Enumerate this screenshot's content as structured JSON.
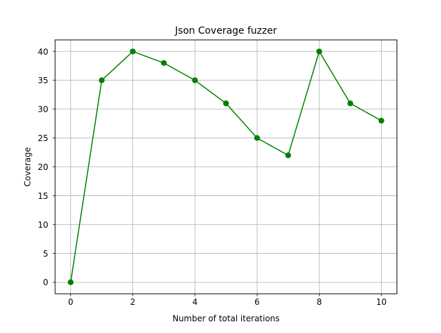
{
  "chart_data": {
    "type": "line",
    "title": "Json Coverage fuzzer",
    "xlabel": "Number of total iterations",
    "ylabel": "Coverage",
    "x": [
      0,
      1,
      2,
      3,
      4,
      5,
      6,
      7,
      8,
      9,
      10
    ],
    "series": [
      {
        "name": "",
        "values": [
          0,
          35,
          40,
          38,
          35,
          31,
          25,
          22,
          40,
          31,
          28
        ],
        "color": "#008000",
        "marker": "circle"
      }
    ],
    "xticks": [
      0,
      2,
      4,
      6,
      8,
      10
    ],
    "yticks": [
      0,
      5,
      10,
      15,
      20,
      25,
      30,
      35,
      40
    ],
    "xlim": [
      -0.5,
      10.5
    ],
    "ylim": [
      -2,
      42
    ],
    "grid": true,
    "legend": "none"
  }
}
